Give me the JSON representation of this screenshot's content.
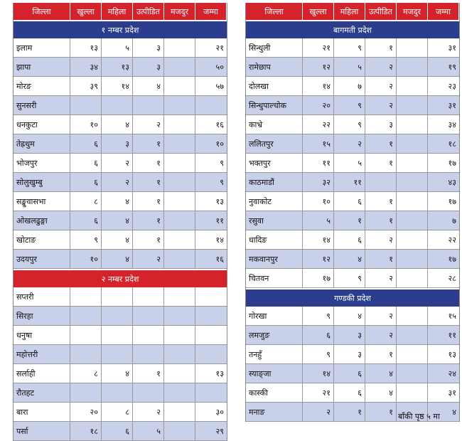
{
  "left": {
    "header": [
      "जिल्ला",
      "खुल्ला",
      "महिला",
      "उत्पीडित",
      "मजदुर",
      "जम्मा"
    ],
    "sections": [
      {
        "title": "१ नम्बर प्रदेश",
        "color": "#2b3d8c",
        "rows": [
          [
            "इलाम",
            "१३",
            "५",
            "३",
            null,
            "२१"
          ],
          [
            "झापा",
            "३४",
            "१३",
            "३",
            null,
            "५०"
          ],
          [
            "मोरङ",
            "३९",
            "१४",
            "४",
            null,
            "५७"
          ],
          [
            "सुनसरी",
            null,
            null,
            null,
            null,
            null
          ],
          [
            "धनकुटा",
            "१०",
            "४",
            "२",
            null,
            "१६"
          ],
          [
            "तेह्रथुम",
            "६",
            "३",
            "१",
            null,
            "१०"
          ],
          [
            "भोजपुर",
            "६",
            "२",
            "१",
            null,
            "९"
          ],
          [
            "सोलुखुम्बु",
            "६",
            "२",
            "१",
            null,
            "९"
          ],
          [
            "सङ्खुवासभा",
            "८",
            "४",
            "१",
            null,
            "१३"
          ],
          [
            "ओखलढुङ्गा",
            "६",
            "४",
            "१",
            null,
            "११"
          ],
          [
            "खोटाङ",
            "९",
            "४",
            "१",
            null,
            "१४"
          ],
          [
            "उदयपुर",
            "१०",
            "४",
            "२",
            null,
            "१६"
          ]
        ]
      },
      {
        "title": "२ नम्बर प्रदेश",
        "color": "#d5232c",
        "rows": [
          [
            "सप्तरी",
            null,
            null,
            null,
            null,
            null
          ],
          [
            "सिरहा",
            null,
            null,
            null,
            null,
            null
          ],
          [
            "धनुषा",
            null,
            null,
            null,
            null,
            null
          ],
          [
            "महोत्तरी",
            null,
            null,
            null,
            null,
            null
          ],
          [
            "सर्लाही",
            "८",
            "४",
            "१",
            null,
            "१३"
          ],
          [
            "रौतहट",
            null,
            null,
            null,
            null,
            null
          ],
          [
            "बारा",
            "२०",
            "८",
            "२",
            null,
            "३०"
          ],
          [
            "पर्सा",
            "१८",
            "६",
            "५",
            null,
            "२९"
          ]
        ]
      }
    ]
  },
  "right": {
    "header": [
      "जिल्ला",
      "खुल्ला",
      "महिला",
      "उत्पीडित",
      "मजदुर",
      "जम्मा"
    ],
    "sections": [
      {
        "title": "बागमती प्रदेश",
        "color": "#2b3d8c",
        "rows": [
          [
            "सिन्धुली",
            "२१",
            "९",
            "१",
            null,
            "३१"
          ],
          [
            "रामेछाप",
            "१२",
            "५",
            "२",
            null,
            "१९"
          ],
          [
            "दोलखा",
            "१४",
            "७",
            "२",
            null,
            "२३"
          ],
          [
            "सिन्धुपाल्चोक",
            "२०",
            "९",
            "२",
            null,
            "३१"
          ],
          [
            "काभ्रे",
            "२२",
            "९",
            "३",
            null,
            "३४"
          ],
          [
            "ललितपुर",
            "१५",
            "२",
            "१",
            null,
            "१८"
          ],
          [
            "भक्तपुर",
            "११",
            "५",
            "१",
            null,
            "१७"
          ],
          [
            "काठमाडौं",
            "३२",
            "११",
            null,
            null,
            "४३"
          ],
          [
            "नुवाकोट",
            "१०",
            "६",
            "१",
            null,
            "१७"
          ],
          [
            "रसुवा",
            "५",
            "१",
            "१",
            null,
            "७"
          ],
          [
            "धादिङ",
            "१४",
            "६",
            "२",
            null,
            "२२"
          ],
          [
            "मकवानपुर",
            "१२",
            "४",
            "१",
            null,
            "१७"
          ],
          [
            "चितवन",
            "१७",
            "९",
            "२",
            null,
            "२८"
          ]
        ]
      },
      {
        "title": "गण्डकी प्रदेश",
        "color": "#2b3d8c",
        "rows": [
          [
            "गोरखा",
            "९",
            "४",
            "२",
            null,
            "१५"
          ],
          [
            "लमजुङ",
            "६",
            "३",
            "२",
            null,
            "११"
          ],
          [
            "तनहुँ",
            "९",
            "३",
            "१",
            null,
            "१३"
          ],
          [
            "स्याङ्जा",
            "१४",
            "६",
            "४",
            null,
            "२४"
          ],
          [
            "कास्की",
            "२१",
            "६",
            "४",
            null,
            "३१"
          ],
          [
            "मनाङ",
            "२",
            "१",
            "१",
            null,
            "४"
          ]
        ]
      }
    ]
  },
  "footer": "बाँकी पृष्ठ ५ मा"
}
